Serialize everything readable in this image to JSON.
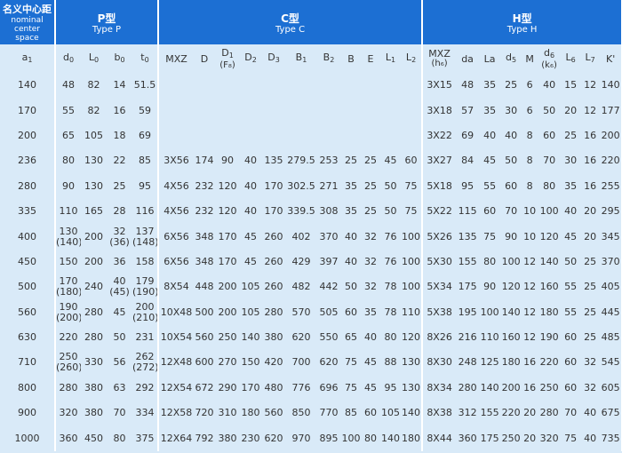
{
  "header": {
    "first": {
      "title": "名义中心距",
      "subtitle": "nominal center space"
    },
    "groups": [
      {
        "title": "P型",
        "subtitle": "Type P",
        "span": 4
      },
      {
        "title": "C型",
        "subtitle": "Type C",
        "span": 11
      },
      {
        "title": "H型",
        "subtitle": "Type H",
        "span": 9
      }
    ]
  },
  "columns": [
    {
      "base": "a",
      "sub": "1"
    },
    {
      "base": "d",
      "sub": "0"
    },
    {
      "base": "L",
      "sub": "0"
    },
    {
      "base": "b",
      "sub": "0"
    },
    {
      "base": "t",
      "sub": "0"
    },
    {
      "base": "MXZ"
    },
    {
      "base": "D"
    },
    {
      "base": "D",
      "sub": "1",
      "note": "(F₈)"
    },
    {
      "base": "D",
      "sub": "2"
    },
    {
      "base": "D",
      "sub": "3"
    },
    {
      "base": "B",
      "sub": "1"
    },
    {
      "base": "B",
      "sub": "2"
    },
    {
      "base": "B"
    },
    {
      "base": "E"
    },
    {
      "base": "L",
      "sub": "1"
    },
    {
      "base": "L",
      "sub": "2"
    },
    {
      "base": "MXZ",
      "note": "(h₆)"
    },
    {
      "base": "da"
    },
    {
      "base": "La"
    },
    {
      "base": "d",
      "sub": "5"
    },
    {
      "base": "M"
    },
    {
      "base": "d",
      "sub": "6",
      "note": "(k₆)"
    },
    {
      "base": "L",
      "sub": "6"
    },
    {
      "base": "L",
      "sub": "7"
    },
    {
      "base": "K'"
    }
  ],
  "rows": [
    [
      "140",
      "48",
      "82",
      "14",
      "51.5",
      null,
      null,
      null,
      null,
      null,
      null,
      null,
      null,
      null,
      null,
      null,
      "3X15",
      "48",
      "35",
      "25",
      "6",
      "40",
      "15",
      "12",
      "140"
    ],
    [
      "170",
      "55",
      "82",
      "16",
      "59",
      null,
      null,
      null,
      null,
      null,
      null,
      null,
      null,
      null,
      null,
      null,
      "3X18",
      "57",
      "35",
      "30",
      "6",
      "50",
      "20",
      "12",
      "177"
    ],
    [
      "200",
      "65",
      "105",
      "18",
      "69",
      null,
      null,
      null,
      null,
      null,
      null,
      null,
      null,
      null,
      null,
      null,
      "3X22",
      "69",
      "40",
      "40",
      "8",
      "60",
      "25",
      "16",
      "200"
    ],
    [
      "236",
      "80",
      "130",
      "22",
      "85",
      "3X56",
      "174",
      "90",
      "40",
      "135",
      "279.5",
      "253",
      "25",
      "25",
      "45",
      "60",
      "3X27",
      "84",
      "45",
      "50",
      "8",
      "70",
      "30",
      "16",
      "220"
    ],
    [
      "280",
      "90",
      "130",
      "25",
      "95",
      "4X56",
      "232",
      "120",
      "40",
      "170",
      "302.5",
      "271",
      "35",
      "25",
      "50",
      "75",
      "5X18",
      "95",
      "55",
      "60",
      "8",
      "80",
      "35",
      "16",
      "255"
    ],
    [
      "335",
      "110",
      "165",
      "28",
      "116",
      "4X56",
      "232",
      "120",
      "40",
      "170",
      "339.5",
      "308",
      "35",
      "25",
      "50",
      "75",
      "5X22",
      "115",
      "60",
      "70",
      "10",
      "100",
      "40",
      "20",
      "295"
    ],
    [
      "400",
      "130\n(140)",
      "200",
      "32\n(36)",
      "137\n(148)",
      "6X56",
      "348",
      "170",
      "45",
      "260",
      "402",
      "370",
      "40",
      "32",
      "76",
      "100",
      "5X26",
      "135",
      "75",
      "90",
      "10",
      "120",
      "45",
      "20",
      "345"
    ],
    [
      "450",
      "150",
      "200",
      "36",
      "158",
      "6X56",
      "348",
      "170",
      "45",
      "260",
      "429",
      "397",
      "40",
      "32",
      "76",
      "100",
      "5X30",
      "155",
      "80",
      "100",
      "12",
      "140",
      "50",
      "25",
      "370"
    ],
    [
      "500",
      "170\n(180)",
      "240",
      "40\n(45)",
      "179\n(190)",
      "8X54",
      "448",
      "200",
      "105",
      "260",
      "482",
      "442",
      "50",
      "32",
      "78",
      "100",
      "5X34",
      "175",
      "90",
      "120",
      "12",
      "160",
      "55",
      "25",
      "405"
    ],
    [
      "560",
      "190\n(200)",
      "280",
      "45",
      "200\n(210)",
      "10X48",
      "500",
      "200",
      "105",
      "280",
      "570",
      "505",
      "60",
      "35",
      "78",
      "110",
      "5X38",
      "195",
      "100",
      "140",
      "12",
      "180",
      "55",
      "25",
      "445"
    ],
    [
      "630",
      "220",
      "280",
      "50",
      "231",
      "10X54",
      "560",
      "250",
      "140",
      "380",
      "620",
      "550",
      "65",
      "40",
      "80",
      "120",
      "8X26",
      "216",
      "110",
      "160",
      "12",
      "190",
      "60",
      "25",
      "485"
    ],
    [
      "710",
      "250\n(260)",
      "330",
      "56",
      "262\n(272)",
      "12X48",
      "600",
      "270",
      "150",
      "420",
      "700",
      "620",
      "75",
      "45",
      "88",
      "130",
      "8X30",
      "248",
      "125",
      "180",
      "16",
      "220",
      "60",
      "32",
      "545"
    ],
    [
      "800",
      "280",
      "380",
      "63",
      "292",
      "12X54",
      "672",
      "290",
      "170",
      "480",
      "776",
      "696",
      "75",
      "45",
      "95",
      "130",
      "8X34",
      "280",
      "140",
      "200",
      "16",
      "250",
      "60",
      "32",
      "605"
    ],
    [
      "900",
      "320",
      "380",
      "70",
      "334",
      "12X58",
      "720",
      "310",
      "180",
      "560",
      "850",
      "770",
      "85",
      "60",
      "105",
      "140",
      "8X38",
      "312",
      "155",
      "220",
      "20",
      "280",
      "70",
      "40",
      "675"
    ],
    [
      "1000",
      "360",
      "450",
      "80",
      "375",
      "12X64",
      "792",
      "380",
      "230",
      "620",
      "970",
      "895",
      "100",
      "80",
      "140",
      "180",
      "8X44",
      "360",
      "175",
      "250",
      "20",
      "320",
      "75",
      "40",
      "735"
    ]
  ]
}
